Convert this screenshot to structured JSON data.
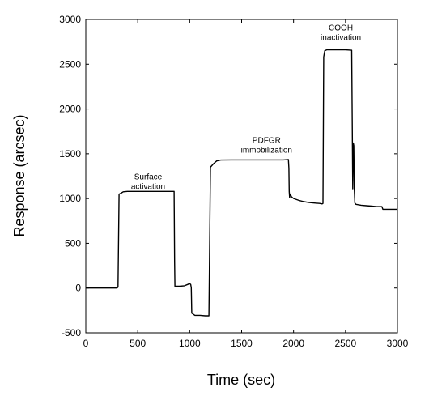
{
  "chart_data": {
    "type": "line",
    "title": "",
    "xlabel": "Time (sec)",
    "ylabel": "Response (arcsec)",
    "xlim": [
      0,
      3000
    ],
    "ylim": [
      -500,
      3000
    ],
    "xticks": [
      "0",
      "500",
      "1000",
      "1500",
      "2000",
      "2500",
      "3000"
    ],
    "yticks": [
      "-500",
      "0",
      "500",
      "1000",
      "1500",
      "2000",
      "2500",
      "3000"
    ],
    "grid": false,
    "legend": "none",
    "line_color": "#000000",
    "series": [
      {
        "x": [
          0,
          290,
          300,
          310,
          320,
          340,
          360,
          400,
          500,
          600,
          700,
          800,
          850,
          855,
          858,
          860,
          900,
          950,
          980,
          1000,
          1010,
          1015,
          1020,
          1050,
          1100,
          1150,
          1175,
          1185,
          1200,
          1230,
          1260,
          1300,
          1400,
          1500,
          1600,
          1700,
          1800,
          1900,
          1950,
          1955,
          1958,
          1962,
          1968,
          1980,
          2000,
          2050,
          2100,
          2150,
          2200,
          2250,
          2275,
          2283,
          2290,
          2300,
          2320,
          2400,
          2500,
          2560,
          2570,
          2575,
          2580,
          2585,
          2590,
          2600,
          2650,
          2700,
          2750,
          2800,
          2850,
          2860,
          2870,
          2900,
          3000
        ],
        "y": [
          0,
          0,
          0,
          10,
          1050,
          1060,
          1075,
          1080,
          1080,
          1080,
          1080,
          1080,
          1080,
          300,
          20,
          20,
          20,
          25,
          40,
          50,
          40,
          5,
          -280,
          -305,
          -305,
          -310,
          -310,
          -310,
          1350,
          1390,
          1420,
          1430,
          1432,
          1432,
          1432,
          1432,
          1432,
          1432,
          1435,
          1340,
          1080,
          1010,
          1050,
          1020,
          1000,
          980,
          965,
          955,
          950,
          945,
          940,
          945,
          2580,
          2650,
          2660,
          2660,
          2660,
          2655,
          1100,
          1620,
          1590,
          1100,
          950,
          935,
          925,
          920,
          915,
          910,
          910,
          880,
          880,
          880,
          880
        ]
      }
    ],
    "annotations": [
      {
        "lines": [
          "Surface",
          "activation"
        ],
        "x": 600,
        "y": 1215
      },
      {
        "lines": [
          "PDFGR",
          "immobilization"
        ],
        "x": 1740,
        "y": 1620
      },
      {
        "lines": [
          "COOH",
          "inactivation"
        ],
        "x": 2455,
        "y": 2880
      }
    ]
  }
}
